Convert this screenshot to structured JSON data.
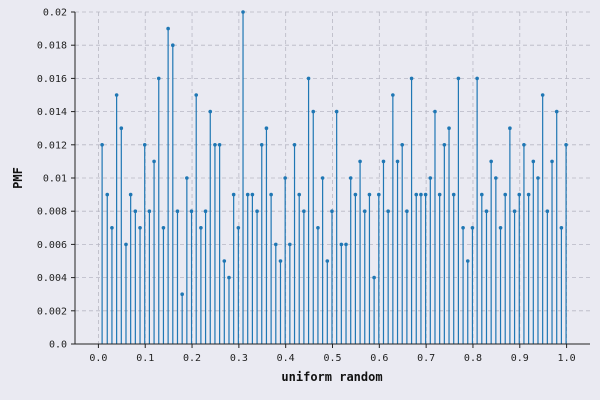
{
  "chart_data": {
    "type": "stem",
    "xlabel": "uniform random",
    "ylabel": "PMF",
    "xlim": [
      -0.05,
      1.05
    ],
    "ylim": [
      0,
      0.02
    ],
    "xticks": [
      "0.0",
      "0.1",
      "0.2",
      "0.3",
      "0.4",
      "0.5",
      "0.6",
      "0.7",
      "0.8",
      "0.9",
      "1.0"
    ],
    "yticks": [
      "0.0",
      "0.002",
      "0.004",
      "0.006",
      "0.008",
      "0.01",
      "0.012",
      "0.014",
      "0.016",
      "0.018",
      "0.02"
    ],
    "grid": true,
    "stem_color": "#1f77b4",
    "x": [
      0.0079,
      0.0189,
      0.0289,
      0.0389,
      0.0489,
      0.0589,
      0.0689,
      0.0789,
      0.0889,
      0.0989,
      0.1089,
      0.1189,
      0.1289,
      0.1389,
      0.1489,
      0.1589,
      0.1689,
      0.1789,
      0.1889,
      0.1989,
      0.2089,
      0.2189,
      0.2289,
      0.2389,
      0.2489,
      0.2589,
      0.2689,
      0.2789,
      0.2889,
      0.2989,
      0.3089,
      0.3189,
      0.3289,
      0.3389,
      0.3489,
      0.3589,
      0.3689,
      0.3789,
      0.3889,
      0.3989,
      0.4089,
      0.4189,
      0.4289,
      0.4389,
      0.4489,
      0.4589,
      0.4689,
      0.4789,
      0.4889,
      0.4989,
      0.5089,
      0.5189,
      0.5289,
      0.5389,
      0.5489,
      0.5589,
      0.5689,
      0.5789,
      0.5889,
      0.5989,
      0.6089,
      0.6189,
      0.6289,
      0.6389,
      0.6489,
      0.6589,
      0.6689,
      0.6789,
      0.6889,
      0.6989,
      0.7089,
      0.7189,
      0.7289,
      0.7389,
      0.7489,
      0.7589,
      0.7689,
      0.7789,
      0.7889,
      0.7989,
      0.8089,
      0.8189,
      0.8289,
      0.8389,
      0.8489,
      0.8589,
      0.8689,
      0.8789,
      0.8889,
      0.8989,
      0.9089,
      0.9189,
      0.9289,
      0.9389,
      0.9489,
      0.9589,
      0.9689,
      0.9789,
      0.9889,
      0.9989
    ],
    "values": [
      0.012,
      0.009,
      0.007,
      0.015,
      0.013,
      0.006,
      0.009,
      0.008,
      0.007,
      0.012,
      0.008,
      0.011,
      0.016,
      0.007,
      0.019,
      0.018,
      0.008,
      0.003,
      0.01,
      0.008,
      0.015,
      0.007,
      0.008,
      0.014,
      0.012,
      0.012,
      0.005,
      0.004,
      0.009,
      0.007,
      0.02,
      0.009,
      0.009,
      0.008,
      0.012,
      0.013,
      0.009,
      0.006,
      0.005,
      0.01,
      0.006,
      0.012,
      0.009,
      0.008,
      0.016,
      0.014,
      0.007,
      0.01,
      0.005,
      0.008,
      0.014,
      0.006,
      0.006,
      0.01,
      0.009,
      0.011,
      0.008,
      0.009,
      0.004,
      0.009,
      0.011,
      0.008,
      0.015,
      0.011,
      0.012,
      0.008,
      0.016,
      0.009,
      0.009,
      0.009,
      0.01,
      0.014,
      0.009,
      0.012,
      0.013,
      0.009,
      0.016,
      0.007,
      0.005,
      0.007,
      0.016,
      0.009,
      0.008,
      0.011,
      0.01,
      0.007,
      0.009,
      0.013,
      0.008,
      0.009,
      0.012,
      0.009,
      0.011,
      0.01,
      0.015,
      0.008,
      0.011,
      0.014,
      0.007,
      0.012
    ]
  }
}
